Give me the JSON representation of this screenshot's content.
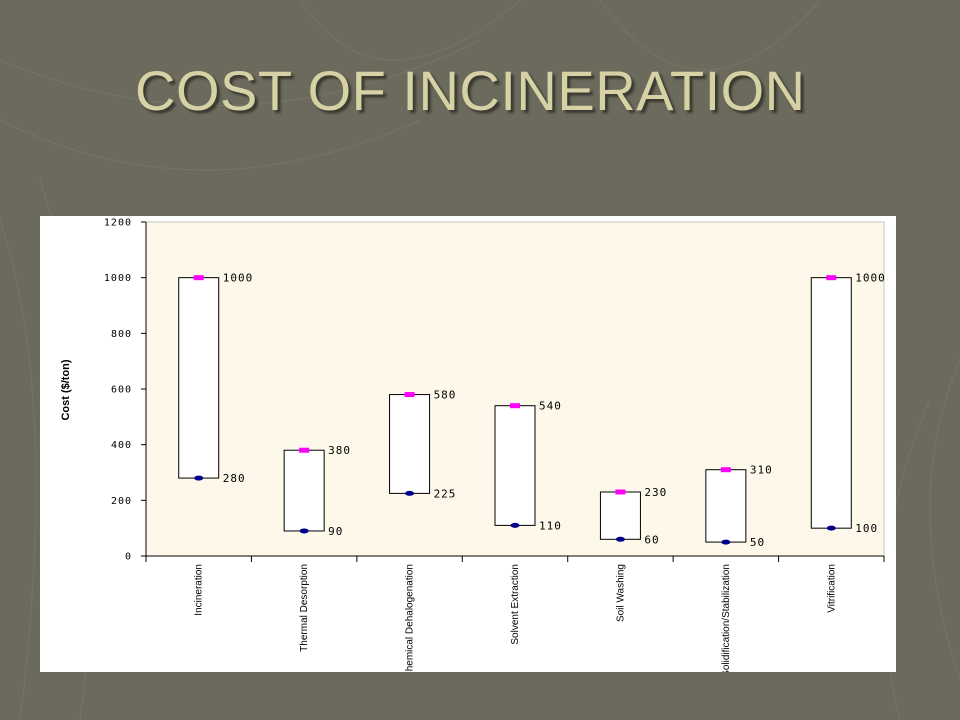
{
  "slide": {
    "title": "COST OF INCINERATION",
    "background_color": "#6b6a5c",
    "title_color": "#d6d2a6"
  },
  "chart_data": {
    "type": "range-bar",
    "title": "",
    "xlabel": "",
    "ylabel": "Cost ($/ton)",
    "ylim": [
      0,
      1200
    ],
    "yticks": [
      0,
      200,
      400,
      600,
      800,
      1000,
      1200
    ],
    "grid": false,
    "legend": "none",
    "plot_background": "#fdf8ea",
    "high_marker_color": "#ff00ff",
    "low_marker_color": "#00008b",
    "categories": [
      "Incineration",
      "Thermal Desorption",
      "Chemical Dehalogenation",
      "Solvent Extraction",
      "Soil Washing",
      "Solidification/Stabilization",
      "Vitrification"
    ],
    "series": [
      {
        "values": [
          1000,
          380,
          580,
          540,
          230,
          310,
          1000
        ]
      },
      {
        "values": [
          280,
          90,
          225,
          110,
          60,
          50,
          100
        ]
      }
    ]
  }
}
